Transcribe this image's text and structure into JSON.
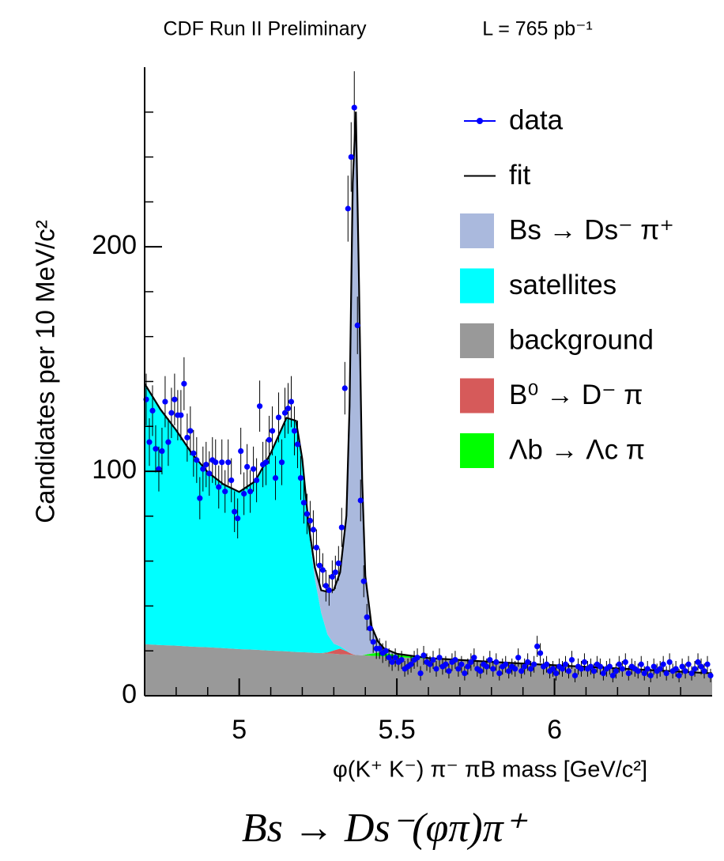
{
  "chart_data": {
    "type": "scatter",
    "title": "CDF Run II Preliminary",
    "subtitle": "L = 765 pb⁻¹",
    "caption": "Bs → Ds⁻(φπ)π⁺",
    "xlabel": "φ(K⁺ K⁻) π⁻  πB mass [GeV/c²]",
    "ylabel": "Candidates per 10 MeV/c²",
    "xlim": [
      4.7,
      6.5
    ],
    "ylim": [
      0,
      280
    ],
    "xticks": [
      5,
      5.5,
      6
    ],
    "yticks": [
      0,
      100,
      200
    ],
    "xminorticks": [
      4.8,
      4.9,
      5.1,
      5.2,
      5.3,
      5.4,
      5.6,
      5.7,
      5.8,
      5.9,
      6.1,
      6.2,
      6.3,
      6.4
    ],
    "yminorticks": [
      20,
      40,
      60,
      80,
      120,
      140,
      160,
      180,
      220,
      240,
      260
    ],
    "legend": "upper right",
    "x": [
      4.705,
      4.715,
      4.725,
      4.735,
      4.745,
      4.755,
      4.765,
      4.775,
      4.785,
      4.795,
      4.805,
      4.815,
      4.825,
      4.835,
      4.845,
      4.855,
      4.865,
      4.875,
      4.885,
      4.895,
      4.905,
      4.915,
      4.925,
      4.935,
      4.945,
      4.955,
      4.965,
      4.975,
      4.985,
      4.995,
      5.005,
      5.015,
      5.025,
      5.035,
      5.045,
      5.055,
      5.065,
      5.075,
      5.085,
      5.095,
      5.105,
      5.115,
      5.125,
      5.135,
      5.145,
      5.155,
      5.165,
      5.175,
      5.185,
      5.195,
      5.205,
      5.215,
      5.225,
      5.235,
      5.245,
      5.255,
      5.265,
      5.275,
      5.285,
      5.295,
      5.305,
      5.315,
      5.325,
      5.335,
      5.345,
      5.355,
      5.365,
      5.375,
      5.385,
      5.395,
      5.405,
      5.415,
      5.425,
      5.435,
      5.445,
      5.455,
      5.465,
      5.475,
      5.485,
      5.495,
      5.505,
      5.515,
      5.525,
      5.535,
      5.545,
      5.555,
      5.565,
      5.575,
      5.585,
      5.595,
      5.605,
      5.615,
      5.625,
      5.635,
      5.645,
      5.655,
      5.665,
      5.675,
      5.685,
      5.695,
      5.705,
      5.715,
      5.725,
      5.735,
      5.745,
      5.755,
      5.765,
      5.775,
      5.785,
      5.795,
      5.805,
      5.815,
      5.825,
      5.835,
      5.845,
      5.855,
      5.865,
      5.875,
      5.885,
      5.895,
      5.905,
      5.915,
      5.925,
      5.935,
      5.945,
      5.955,
      5.965,
      5.975,
      5.985,
      5.995,
      6.005,
      6.015,
      6.025,
      6.035,
      6.045,
      6.055,
      6.065,
      6.075,
      6.085,
      6.095,
      6.105,
      6.115,
      6.125,
      6.135,
      6.145,
      6.155,
      6.165,
      6.175,
      6.185,
      6.195,
      6.205,
      6.215,
      6.225,
      6.235,
      6.245,
      6.255,
      6.265,
      6.275,
      6.285,
      6.295,
      6.305,
      6.315,
      6.325,
      6.335,
      6.345,
      6.355,
      6.365,
      6.375,
      6.385,
      6.395,
      6.405,
      6.415,
      6.425,
      6.435,
      6.445,
      6.455,
      6.465,
      6.475,
      6.485,
      6.495
    ],
    "series": [
      {
        "name": "data",
        "color": "#0000ff",
        "values": [
          132,
          113,
          127,
          110,
          101,
          109,
          131,
          113,
          126,
          132,
          125,
          125,
          139,
          115,
          118,
          108,
          105,
          88,
          101,
          103,
          99,
          105,
          104,
          93,
          104,
          91,
          104,
          96,
          82,
          79,
          109,
          90,
          102,
          91,
          101,
          96,
          129,
          103,
          104,
          114,
          118,
          97,
          124,
          104,
          126,
          128,
          131,
          118,
          112,
          97,
          86,
          81,
          78,
          74,
          66,
          58,
          56,
          49,
          47,
          53,
          55,
          59,
          75,
          137,
          217,
          240,
          262,
          165,
          87,
          51,
          35,
          30,
          24,
          21,
          21,
          19,
          20,
          17,
          15,
          17,
          15,
          16,
          12,
          13,
          14,
          16,
          17,
          10,
          18,
          15,
          14,
          16,
          12,
          17,
          13,
          14,
          11,
          15,
          16,
          12,
          14,
          10,
          13,
          15,
          17,
          12,
          11,
          14,
          13,
          16,
          12,
          15,
          10,
          13,
          14,
          11,
          13,
          12,
          17,
          11,
          13,
          15,
          12,
          14,
          22,
          19,
          13,
          14,
          11,
          12,
          10,
          13,
          12,
          14,
          11,
          16,
          9,
          13,
          12,
          15,
          12,
          13,
          11,
          14,
          13,
          10,
          12,
          13,
          9,
          11,
          14,
          12,
          15,
          10,
          13,
          12,
          11,
          14,
          10,
          12,
          9,
          13,
          11,
          12,
          14,
          10,
          15,
          11,
          12,
          9,
          13,
          11,
          14,
          10,
          12,
          15,
          13,
          11,
          14,
          9
        ],
        "errors": [
          11.5,
          10.6,
          11.3,
          10.5,
          10.0,
          10.4,
          11.4,
          10.6,
          11.2,
          11.5,
          11.2,
          11.2,
          11.8,
          10.7,
          10.9,
          10.4,
          10.2,
          9.4,
          10.0,
          10.1,
          9.9,
          10.2,
          10.2,
          9.6,
          10.2,
          9.5,
          10.2,
          9.8,
          9.1,
          8.9,
          10.4,
          9.5,
          10.1,
          9.5,
          10.0,
          9.8,
          11.4,
          10.1,
          10.2,
          10.7,
          10.9,
          9.8,
          11.1,
          10.2,
          11.2,
          11.3,
          11.4,
          10.9,
          10.6,
          9.8,
          9.3,
          9.0,
          8.8,
          8.6,
          8.1,
          7.6,
          7.5,
          7.0,
          6.9,
          7.3,
          7.4,
          7.7,
          8.7,
          11.7,
          14.7,
          15.5,
          16.2,
          12.8,
          9.3,
          7.1,
          5.9,
          5.5,
          4.9,
          4.6,
          4.6,
          4.4,
          4.5,
          4.1,
          3.9,
          4.1,
          3.9,
          4.0,
          3.5,
          3.6,
          3.7,
          4.0,
          4.1,
          3.2,
          4.2,
          3.9,
          3.7,
          4.0,
          3.5,
          4.1,
          3.6,
          3.7,
          3.3,
          3.9,
          4.0,
          3.5,
          3.7,
          3.2,
          3.6,
          3.9,
          4.1,
          3.5,
          3.3,
          3.7,
          3.6,
          4.0,
          3.5,
          3.9,
          3.2,
          3.6,
          3.7,
          3.3,
          3.6,
          3.5,
          4.1,
          3.3,
          3.6,
          3.9,
          3.5,
          3.7,
          4.7,
          4.4,
          3.6,
          3.7,
          3.3,
          3.5,
          3.2,
          3.6,
          3.5,
          3.7,
          3.3,
          4.0,
          3.0,
          3.6,
          3.5,
          3.9,
          3.5,
          3.6,
          3.3,
          3.7,
          3.6,
          3.2,
          3.5,
          3.6,
          3.0,
          3.3,
          3.7,
          3.5,
          3.9,
          3.2,
          3.6,
          3.5,
          3.3,
          3.7,
          3.2,
          3.5,
          3.0,
          3.6,
          3.3,
          3.5,
          3.7,
          3.2,
          3.9,
          3.3,
          3.5,
          3.0,
          3.6,
          3.3,
          3.7,
          3.2,
          3.5,
          3.9,
          3.6,
          3.3,
          3.7,
          3.0
        ]
      }
    ],
    "curve_x": [
      4.7,
      4.75,
      4.8,
      4.85,
      4.9,
      4.95,
      5.0,
      5.05,
      5.1,
      5.15,
      5.18,
      5.2,
      5.22,
      5.24,
      5.26,
      5.28,
      5.3,
      5.32,
      5.34,
      5.35,
      5.36,
      5.37,
      5.38,
      5.39,
      5.4,
      5.42,
      5.44,
      5.46,
      5.5,
      5.6,
      5.8,
      6.0,
      6.2,
      6.5
    ],
    "fit": {
      "name": "fit",
      "color": "#000000",
      "values": [
        139,
        127.6,
        118.3,
        107.9,
        99.6,
        94.2,
        90.8,
        95.5,
        108.1,
        123.8,
        122.5,
        105.4,
        76.3,
        57.1,
        47,
        46.3,
        47.2,
        55,
        80.2,
        129.1,
        228.5,
        260.2,
        183.1,
        96,
        53.3,
        30.8,
        24.2,
        21,
        18.7,
        16.8,
        15.1,
        13.6,
        12.2,
        10
      ]
    },
    "components": [
      {
        "name": "Bs → Ds⁻ π⁺",
        "color": "#aab9dd",
        "values": [
          0,
          0,
          0,
          0,
          0,
          0,
          0,
          0,
          0,
          0,
          0,
          0,
          2,
          5,
          10,
          19,
          24,
          33,
          60,
          110,
          210,
          242,
          165,
          78,
          35,
          12,
          5,
          2,
          0.5,
          0,
          0,
          0,
          0,
          0
        ]
      },
      {
        "name": "satellites",
        "color": "#00ffff",
        "values": [
          116,
          105,
          96,
          86,
          78,
          73,
          70,
          75,
          88,
          104,
          103,
          86,
          55,
          33,
          18,
          8,
          3,
          1,
          0.3,
          0,
          0,
          0,
          0,
          0,
          0,
          0,
          0,
          0,
          0,
          0,
          0,
          0,
          0,
          0
        ]
      },
      {
        "name": "background",
        "color": "#999999",
        "values": [
          23,
          22.6,
          22.3,
          21.9,
          21.6,
          21.2,
          20.8,
          20.5,
          20.1,
          19.8,
          19.5,
          19.4,
          19.3,
          19.1,
          19,
          18.8,
          18.7,
          18.5,
          18.4,
          18.3,
          18.2,
          18.2,
          18.1,
          18,
          18,
          17.8,
          17.7,
          17.5,
          17.2,
          16.5,
          15.1,
          13.6,
          12.2,
          10
        ]
      },
      {
        "name": "B⁰ → D⁻ π",
        "color": "#d65a5a",
        "values": [
          0,
          0,
          0,
          0,
          0,
          0,
          0,
          0,
          0,
          0,
          0,
          0,
          0,
          0,
          0,
          0.5,
          1.5,
          2.5,
          1.5,
          0.8,
          0.3,
          0,
          0,
          0,
          0,
          0,
          0,
          0,
          0,
          0,
          0,
          0,
          0,
          0
        ]
      },
      {
        "name": "Λb → Λc π",
        "color": "#00ff00",
        "values": [
          0,
          0,
          0,
          0,
          0,
          0,
          0,
          0,
          0,
          0,
          0,
          0,
          0,
          0,
          0,
          0,
          0,
          0,
          0,
          0,
          0,
          0,
          0,
          0,
          0.3,
          1,
          1.5,
          1.5,
          1,
          0.3,
          0,
          0,
          0,
          0
        ]
      }
    ]
  }
}
